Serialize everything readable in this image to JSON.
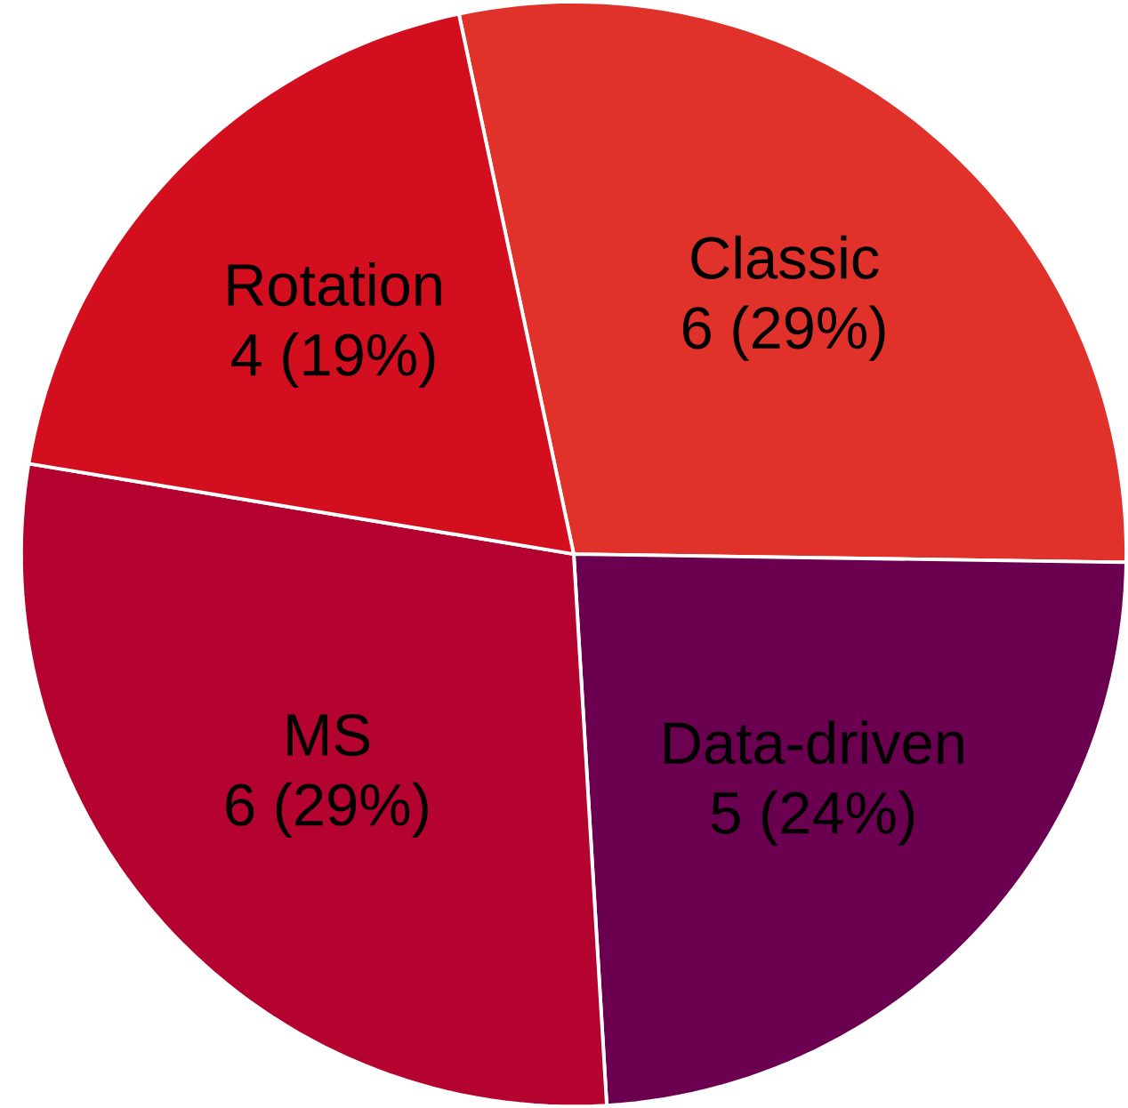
{
  "chart_data": {
    "type": "pie",
    "categories": [
      "Classic",
      "Data-driven",
      "MS",
      "Rotation"
    ],
    "values": [
      6,
      5,
      6,
      4
    ],
    "colors": [
      "#e0322a",
      "#6b0050",
      "#b4032f",
      "#d30e1f"
    ],
    "value_labels": [
      "6 (29%)",
      "5 (24%)",
      "6 (29%)",
      "4 (19%)"
    ]
  }
}
